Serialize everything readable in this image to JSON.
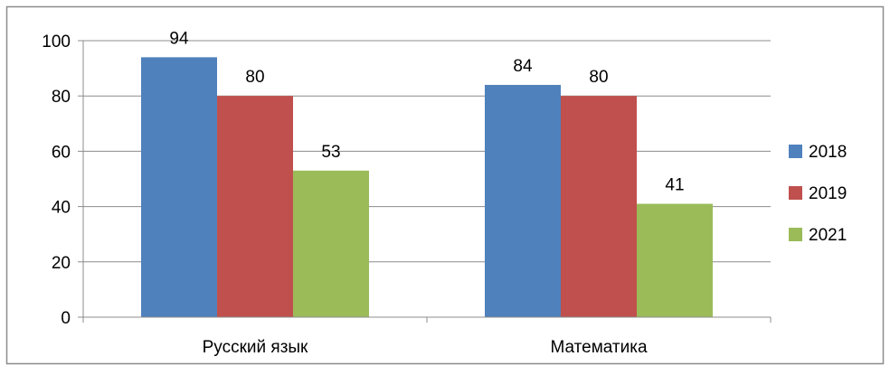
{
  "chart_data": {
    "type": "bar",
    "categories": [
      "Русский язык",
      "Математика"
    ],
    "series": [
      {
        "name": "2018",
        "values": [
          94,
          84
        ],
        "color": "#4F81BD"
      },
      {
        "name": "2019",
        "values": [
          80,
          80
        ],
        "color": "#C0504D"
      },
      {
        "name": "2021",
        "values": [
          53,
          41
        ],
        "color": "#9BBB59"
      }
    ],
    "ylim": [
      0,
      100
    ],
    "yticks": [
      0,
      20,
      40,
      60,
      80,
      100
    ],
    "grid": true,
    "legend": "right",
    "title": "",
    "xlabel": "",
    "ylabel": ""
  }
}
